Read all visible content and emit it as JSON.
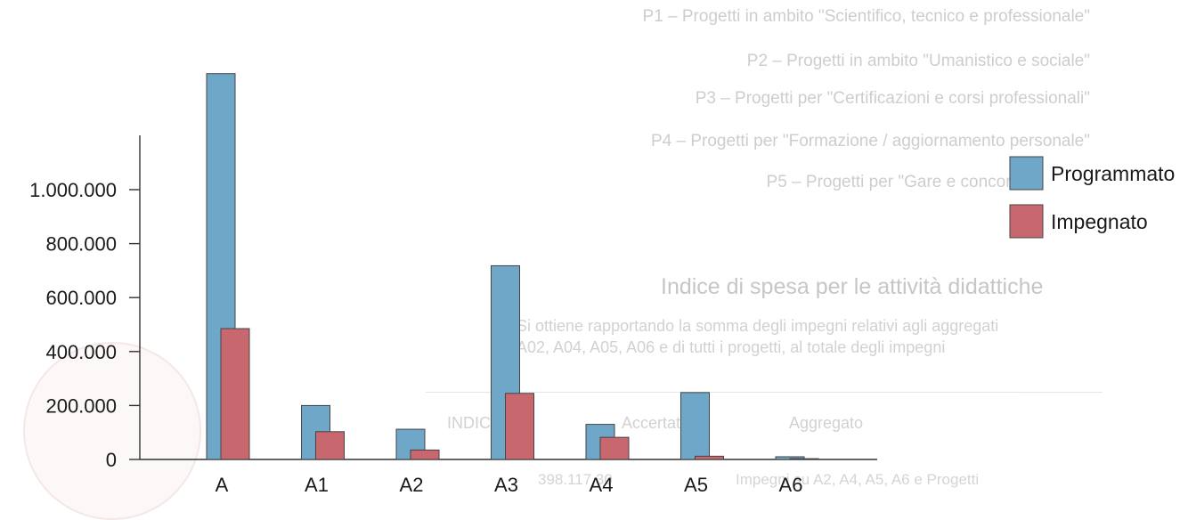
{
  "chart_data": {
    "type": "bar",
    "categories": [
      "A",
      "A1",
      "A2",
      "A3",
      "A4",
      "A5",
      "A6"
    ],
    "series": [
      {
        "name": "Programmato",
        "color": "#6fa7c8",
        "values": [
          1430000,
          200000,
          112000,
          718000,
          130000,
          248000,
          10000
        ]
      },
      {
        "name": "Impegnato",
        "color": "#c8676e",
        "values": [
          485000,
          103000,
          35000,
          245000,
          82000,
          12000,
          3000
        ]
      }
    ],
    "y_ticks": [
      {
        "value": 0,
        "label": "0"
      },
      {
        "value": 200000,
        "label": "200.000"
      },
      {
        "value": 400000,
        "label": "400.000"
      },
      {
        "value": 600000,
        "label": "600.000"
      },
      {
        "value": 800000,
        "label": "800.000"
      },
      {
        "value": 1000000,
        "label": "1.000.000"
      }
    ],
    "ylim": [
      0,
      1430000
    ],
    "legend_position": "right",
    "grid": false,
    "title": "",
    "xlabel": "",
    "ylabel": ""
  },
  "background_text": {
    "projects": [
      "P1 – Progetti in ambito \"Scientifico, tecnico e professionale\"",
      "P2 – Progetti in ambito \"Umanistico e sociale\"",
      "P3 – Progetti per \"Certificazioni e corsi professionali\"",
      "P4 – Progetti per \"Formazione / aggiornamento personale\"",
      "P5 – Progetti per \"Gare e concorsi\""
    ],
    "section_title": "Indice di spesa per le attività didattiche",
    "paragraph_line1": "Si ottiene rapportando la somma degli impegni relativi agli aggregati",
    "paragraph_line2": "A02, A04, A05, A06 e di tutti i progetti, al totale degli impegni",
    "table_headers": [
      "Aggregato",
      "Accertato",
      "INDICE"
    ],
    "table_row_label": "Impegni su A2, A4, A5, A6 e Progetti",
    "table_row_value": "398.117,30"
  }
}
